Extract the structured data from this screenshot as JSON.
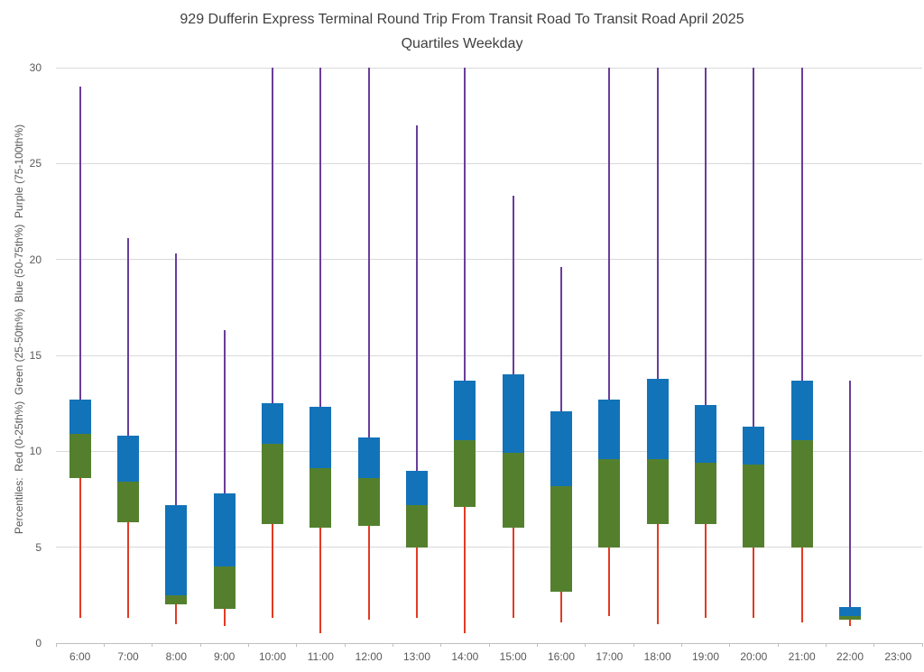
{
  "title": {
    "line1": "929 Dufferin Express Terminal Round Trip From Transit Road To Transit Road April 2025",
    "line2": "Quartiles Weekday"
  },
  "y_axis": {
    "label": "Percentiles:  Red (0-25th%)  Green (25-50th%)  Blue (50-75th%)  Purple (75-100th%)",
    "ticks": [
      "0",
      "5",
      "10",
      "15",
      "20",
      "25",
      "30"
    ],
    "min": 0,
    "max": 30
  },
  "x_axis": {
    "categories": [
      "6:00",
      "7:00",
      "8:00",
      "9:00",
      "10:00",
      "11:00",
      "12:00",
      "13:00",
      "14:00",
      "15:00",
      "16:00",
      "17:00",
      "18:00",
      "19:00",
      "20:00",
      "21:00",
      "22:00",
      "23:00"
    ]
  },
  "colors": {
    "red": "#e23b22",
    "green": "#54802e",
    "blue": "#1273b8",
    "purple": "#6a3d9a",
    "grid": "#d9d9d9",
    "axis": "#bfbfbf",
    "title_text": "#404040",
    "axis_text": "#595959"
  },
  "chart_data": {
    "type": "box",
    "title": "929 Dufferin Express Terminal Round Trip From Transit Road To Transit Road April 2025 Quartiles Weekday",
    "xlabel": "",
    "ylabel": "Percentiles:  Red (0-25th%)  Green (25-50th%)  Blue (50-75th%)  Purple (75-100th%)",
    "ylim": [
      0,
      30
    ],
    "grid": true,
    "legend_position": "none",
    "whisker_semantics": {
      "red_lower_whisker": "0-25th percentile (min to q1)",
      "green_box": "25-50th percentile (q1 to median)",
      "blue_box": "50-75th percentile (median to q3)",
      "purple_upper_whisker": "75-100th percentile (q3 to max)"
    },
    "categories": [
      "6:00",
      "7:00",
      "8:00",
      "9:00",
      "10:00",
      "11:00",
      "12:00",
      "13:00",
      "14:00",
      "15:00",
      "16:00",
      "17:00",
      "18:00",
      "19:00",
      "20:00",
      "21:00",
      "22:00",
      "23:00"
    ],
    "points": [
      {
        "time": "6:00",
        "min": 1.3,
        "q1": 8.6,
        "median": 10.9,
        "q3": 12.7,
        "max": 29.0,
        "max_clipped": false
      },
      {
        "time": "7:00",
        "min": 1.3,
        "q1": 6.3,
        "median": 8.4,
        "q3": 10.8,
        "max": 21.1,
        "max_clipped": false
      },
      {
        "time": "8:00",
        "min": 1.0,
        "q1": 2.0,
        "median": 2.5,
        "q3": 7.2,
        "max": 20.3,
        "max_clipped": false
      },
      {
        "time": "9:00",
        "min": 0.9,
        "q1": 1.8,
        "median": 4.0,
        "q3": 7.8,
        "max": 16.3,
        "max_clipped": false
      },
      {
        "time": "10:00",
        "min": 1.3,
        "q1": 6.2,
        "median": 10.4,
        "q3": 12.5,
        "max": 30,
        "max_clipped": true
      },
      {
        "time": "11:00",
        "min": 0.5,
        "q1": 6.0,
        "median": 9.1,
        "q3": 12.3,
        "max": 30,
        "max_clipped": true
      },
      {
        "time": "12:00",
        "min": 1.2,
        "q1": 6.1,
        "median": 8.6,
        "q3": 10.7,
        "max": 30,
        "max_clipped": true
      },
      {
        "time": "13:00",
        "min": 1.3,
        "q1": 5.0,
        "median": 7.2,
        "q3": 9.0,
        "max": 27.0,
        "max_clipped": false
      },
      {
        "time": "14:00",
        "min": 0.5,
        "q1": 7.1,
        "median": 10.6,
        "q3": 13.7,
        "max": 30,
        "max_clipped": true
      },
      {
        "time": "15:00",
        "min": 1.3,
        "q1": 6.0,
        "median": 9.9,
        "q3": 14.0,
        "max": 23.3,
        "max_clipped": false
      },
      {
        "time": "16:00",
        "min": 1.1,
        "q1": 2.7,
        "median": 8.2,
        "q3": 12.1,
        "max": 19.6,
        "max_clipped": false
      },
      {
        "time": "17:00",
        "min": 1.4,
        "q1": 5.0,
        "median": 9.6,
        "q3": 12.7,
        "max": 30,
        "max_clipped": true
      },
      {
        "time": "18:00",
        "min": 1.0,
        "q1": 6.2,
        "median": 9.6,
        "q3": 13.8,
        "max": 30,
        "max_clipped": true
      },
      {
        "time": "19:00",
        "min": 1.3,
        "q1": 6.2,
        "median": 9.4,
        "q3": 12.4,
        "max": 30,
        "max_clipped": true
      },
      {
        "time": "20:00",
        "min": 1.3,
        "q1": 5.0,
        "median": 9.3,
        "q3": 11.3,
        "max": 30,
        "max_clipped": true
      },
      {
        "time": "21:00",
        "min": 1.1,
        "q1": 5.0,
        "median": 10.6,
        "q3": 13.7,
        "max": 30,
        "max_clipped": true
      },
      {
        "time": "22:00",
        "min": 0.9,
        "q1": 1.2,
        "median": 1.4,
        "q3": 1.9,
        "max": 13.7,
        "max_clipped": false
      },
      {
        "time": "23:00",
        "min": null,
        "q1": null,
        "median": null,
        "q3": null,
        "max": null,
        "max_clipped": false
      }
    ]
  }
}
